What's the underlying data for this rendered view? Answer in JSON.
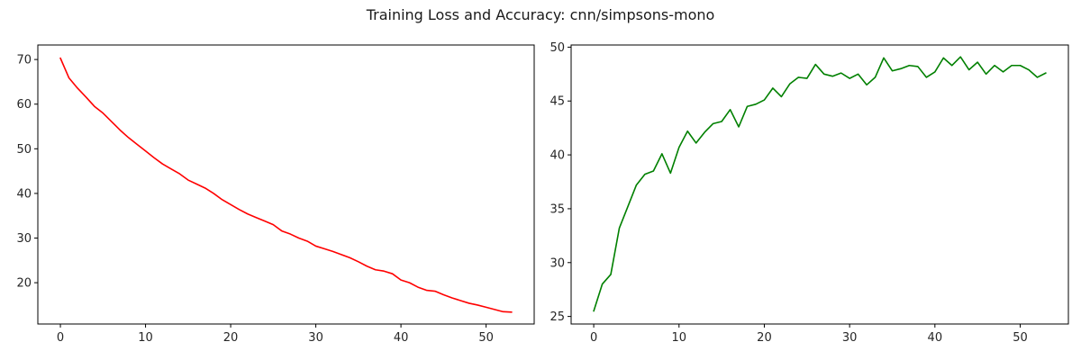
{
  "title": "Training Loss and Accuracy: cnn/simpsons-mono",
  "chart_data": [
    {
      "type": "line",
      "name": "loss-chart",
      "color": "#ff0000",
      "xlim": [
        -2.65,
        55.65
      ],
      "ylim": [
        10.75,
        73.25
      ],
      "xticks": [
        0,
        10,
        20,
        30,
        40,
        50
      ],
      "yticks": [
        20,
        30,
        40,
        50,
        60,
        70
      ],
      "series": [
        {
          "x": [
            0,
            1,
            2,
            3,
            4,
            5,
            6,
            7,
            8,
            9,
            10,
            11,
            12,
            13,
            14,
            15,
            16,
            17,
            18,
            19,
            20,
            21,
            22,
            23,
            24,
            25,
            26,
            27,
            28,
            29,
            30,
            31,
            32,
            33,
            34,
            35,
            36,
            37,
            38,
            39,
            40,
            41,
            42,
            43,
            44,
            45,
            46,
            47,
            48,
            49,
            50,
            51,
            52,
            53
          ],
          "y": [
            70.3,
            65.9,
            63.6,
            61.6,
            59.5,
            58.0,
            56.1,
            54.2,
            52.5,
            51.0,
            49.5,
            48.0,
            46.6,
            45.5,
            44.4,
            43.0,
            42.1,
            41.2,
            40.0,
            38.6,
            37.5,
            36.4,
            35.4,
            34.6,
            33.8,
            33.0,
            31.6,
            30.9,
            30.0,
            29.3,
            28.2,
            27.6,
            27.0,
            26.3,
            25.6,
            24.7,
            23.7,
            22.9,
            22.6,
            22.0,
            20.6,
            20.0,
            19.0,
            18.3,
            18.1,
            17.3,
            16.6,
            16.0,
            15.4,
            15.0,
            14.5,
            14.0,
            13.5,
            13.4
          ]
        }
      ]
    },
    {
      "type": "line",
      "name": "accuracy-chart",
      "color": "#008000",
      "xlim": [
        -2.65,
        55.65
      ],
      "ylim": [
        24.3,
        50.2
      ],
      "xticks": [
        0,
        10,
        20,
        30,
        40,
        50
      ],
      "yticks": [
        25,
        30,
        35,
        40,
        45,
        50
      ],
      "series": [
        {
          "x": [
            0,
            1,
            2,
            3,
            4,
            5,
            6,
            7,
            8,
            9,
            10,
            11,
            12,
            13,
            14,
            15,
            16,
            17,
            18,
            19,
            20,
            21,
            22,
            23,
            24,
            25,
            26,
            27,
            28,
            29,
            30,
            31,
            32,
            33,
            34,
            35,
            36,
            37,
            38,
            39,
            40,
            41,
            42,
            43,
            44,
            45,
            46,
            47,
            48,
            49,
            50,
            51,
            52,
            53
          ],
          "y": [
            25.5,
            28.0,
            28.9,
            33.2,
            35.2,
            37.2,
            38.2,
            38.5,
            40.1,
            38.3,
            40.7,
            42.2,
            41.1,
            42.1,
            42.9,
            43.1,
            44.2,
            42.6,
            44.5,
            44.7,
            45.1,
            46.2,
            45.4,
            46.6,
            47.2,
            47.1,
            48.4,
            47.5,
            47.3,
            47.6,
            47.1,
            47.5,
            46.5,
            47.2,
            49.0,
            47.8,
            48.0,
            48.3,
            48.2,
            47.2,
            47.7,
            49.0,
            48.3,
            49.1,
            47.9,
            48.6,
            47.5,
            48.3,
            47.7,
            48.3,
            48.3,
            47.9,
            47.2,
            47.6
          ]
        }
      ]
    }
  ]
}
